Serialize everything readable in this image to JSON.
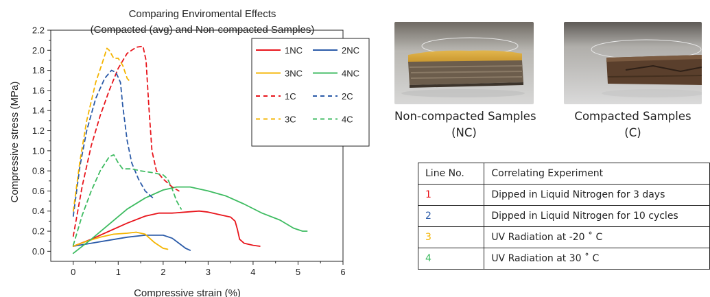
{
  "chart_data": {
    "type": "line",
    "title": "Comparing Enviromental Effects",
    "subtitle": "(Compacted (avg) and Non-compacted Samples)",
    "xlabel": "Compressive strain (%)",
    "ylabel": "Compressive stress (MPa)",
    "xlim": [
      -0.5,
      6
    ],
    "ylim": [
      -0.1,
      2.2
    ],
    "x_ticks": [
      0,
      1,
      2,
      3,
      4,
      5,
      6
    ],
    "x_tick_labels": [
      "0",
      "1",
      "2",
      "3",
      "4",
      "5",
      "6"
    ],
    "y_ticks": [
      0.0,
      0.2,
      0.4,
      0.6,
      0.8,
      1.0,
      1.2,
      1.4,
      1.6,
      1.8,
      2.0,
      2.2
    ],
    "y_tick_labels": [
      "0.0",
      "0.2",
      "0.4",
      "0.6",
      "0.8",
      "1.0",
      "1.2",
      "1.4",
      "1.6",
      "1.8",
      "2.0",
      "2.2"
    ],
    "grid": false,
    "legend_position": "top-right",
    "series": [
      {
        "name": "1NC",
        "color": "#e8141b",
        "dash": "solid",
        "points": [
          [
            0,
            0.05
          ],
          [
            0.4,
            0.12
          ],
          [
            0.8,
            0.2
          ],
          [
            1.2,
            0.28
          ],
          [
            1.6,
            0.35
          ],
          [
            1.9,
            0.38
          ],
          [
            2.2,
            0.38
          ],
          [
            2.5,
            0.39
          ],
          [
            2.8,
            0.4
          ],
          [
            3.0,
            0.39
          ],
          [
            3.3,
            0.36
          ],
          [
            3.5,
            0.34
          ],
          [
            3.6,
            0.3
          ],
          [
            3.65,
            0.22
          ],
          [
            3.7,
            0.12
          ],
          [
            3.8,
            0.08
          ],
          [
            4.0,
            0.06
          ],
          [
            4.15,
            0.05
          ]
        ]
      },
      {
        "name": "2NC",
        "color": "#2a5aa8",
        "dash": "solid",
        "points": [
          [
            0,
            0.05
          ],
          [
            0.4,
            0.08
          ],
          [
            0.8,
            0.11
          ],
          [
            1.2,
            0.14
          ],
          [
            1.6,
            0.16
          ],
          [
            2.0,
            0.16
          ],
          [
            2.2,
            0.13
          ],
          [
            2.35,
            0.08
          ],
          [
            2.5,
            0.03
          ],
          [
            2.6,
            0.01
          ]
        ]
      },
      {
        "name": "3NC",
        "color": "#f4b400",
        "dash": "solid",
        "points": [
          [
            0,
            0.05
          ],
          [
            0.3,
            0.1
          ],
          [
            0.6,
            0.14
          ],
          [
            0.9,
            0.17
          ],
          [
            1.2,
            0.18
          ],
          [
            1.4,
            0.19
          ],
          [
            1.6,
            0.17
          ],
          [
            1.8,
            0.09
          ],
          [
            2.0,
            0.03
          ],
          [
            2.1,
            0.02
          ]
        ]
      },
      {
        "name": "4NC",
        "color": "#3dbb60",
        "dash": "solid",
        "points": [
          [
            0,
            -0.02
          ],
          [
            0.4,
            0.12
          ],
          [
            0.8,
            0.27
          ],
          [
            1.2,
            0.42
          ],
          [
            1.6,
            0.53
          ],
          [
            2.0,
            0.61
          ],
          [
            2.3,
            0.64
          ],
          [
            2.6,
            0.64
          ],
          [
            3.0,
            0.6
          ],
          [
            3.4,
            0.55
          ],
          [
            3.8,
            0.47
          ],
          [
            4.2,
            0.38
          ],
          [
            4.6,
            0.31
          ],
          [
            4.9,
            0.23
          ],
          [
            5.1,
            0.2
          ],
          [
            5.2,
            0.2
          ]
        ]
      },
      {
        "name": "1C",
        "color": "#e8141b",
        "dash": "dashed",
        "points": [
          [
            0,
            0.15
          ],
          [
            0.2,
            0.65
          ],
          [
            0.4,
            1.05
          ],
          [
            0.6,
            1.35
          ],
          [
            0.8,
            1.6
          ],
          [
            1.0,
            1.82
          ],
          [
            1.2,
            1.97
          ],
          [
            1.4,
            2.03
          ],
          [
            1.55,
            2.04
          ],
          [
            1.62,
            1.9
          ],
          [
            1.68,
            1.45
          ],
          [
            1.75,
            1.0
          ],
          [
            1.85,
            0.8
          ],
          [
            2.0,
            0.72
          ],
          [
            2.2,
            0.64
          ],
          [
            2.35,
            0.6
          ]
        ]
      },
      {
        "name": "2C",
        "color": "#2a5aa8",
        "dash": "dashed",
        "points": [
          [
            0,
            0.35
          ],
          [
            0.15,
            0.85
          ],
          [
            0.3,
            1.2
          ],
          [
            0.5,
            1.52
          ],
          [
            0.7,
            1.72
          ],
          [
            0.85,
            1.8
          ],
          [
            0.95,
            1.78
          ],
          [
            1.05,
            1.68
          ],
          [
            1.1,
            1.45
          ],
          [
            1.2,
            1.1
          ],
          [
            1.3,
            0.88
          ],
          [
            1.45,
            0.72
          ],
          [
            1.6,
            0.6
          ],
          [
            1.8,
            0.52
          ]
        ]
      },
      {
        "name": "3C",
        "color": "#f4b400",
        "dash": "dashed",
        "points": [
          [
            0,
            0.4
          ],
          [
            0.15,
            0.9
          ],
          [
            0.3,
            1.3
          ],
          [
            0.5,
            1.68
          ],
          [
            0.65,
            1.88
          ],
          [
            0.75,
            2.02
          ],
          [
            0.8,
            2.0
          ],
          [
            0.9,
            1.92
          ],
          [
            1.0,
            1.92
          ],
          [
            1.1,
            1.85
          ],
          [
            1.2,
            1.72
          ],
          [
            1.28,
            1.68
          ]
        ]
      },
      {
        "name": "4C",
        "color": "#3dbb60",
        "dash": "dashed",
        "points": [
          [
            0,
            0.06
          ],
          [
            0.2,
            0.36
          ],
          [
            0.4,
            0.6
          ],
          [
            0.6,
            0.8
          ],
          [
            0.8,
            0.94
          ],
          [
            0.9,
            0.96
          ],
          [
            1.0,
            0.88
          ],
          [
            1.1,
            0.82
          ],
          [
            1.3,
            0.82
          ],
          [
            1.5,
            0.8
          ],
          [
            1.8,
            0.78
          ],
          [
            2.0,
            0.76
          ],
          [
            2.1,
            0.72
          ],
          [
            2.2,
            0.62
          ],
          [
            2.3,
            0.5
          ],
          [
            2.4,
            0.42
          ]
        ]
      }
    ]
  },
  "photos": {
    "nc_caption_line1": "Non-compacted Samples",
    "nc_caption_line2": "(NC)",
    "c_caption_line1": "Compacted Samples",
    "c_caption_line2": "(C)"
  },
  "table": {
    "header_no": "Line No.",
    "header_exp": "Correlating Experiment",
    "rows": [
      {
        "no": "1",
        "experiment": "Dipped in Liquid Nitrogen for 3 days",
        "color": "#e8141b"
      },
      {
        "no": "2",
        "experiment": "Dipped in Liquid Nitrogen for 10 cycles",
        "color": "#2a5aa8"
      },
      {
        "no": "3",
        "experiment": "UV Radiation at -20 ˚ C",
        "color": "#f4b400"
      },
      {
        "no": "4",
        "experiment": "UV Radiation at 30 ˚ C",
        "color": "#3dbb60"
      }
    ]
  }
}
